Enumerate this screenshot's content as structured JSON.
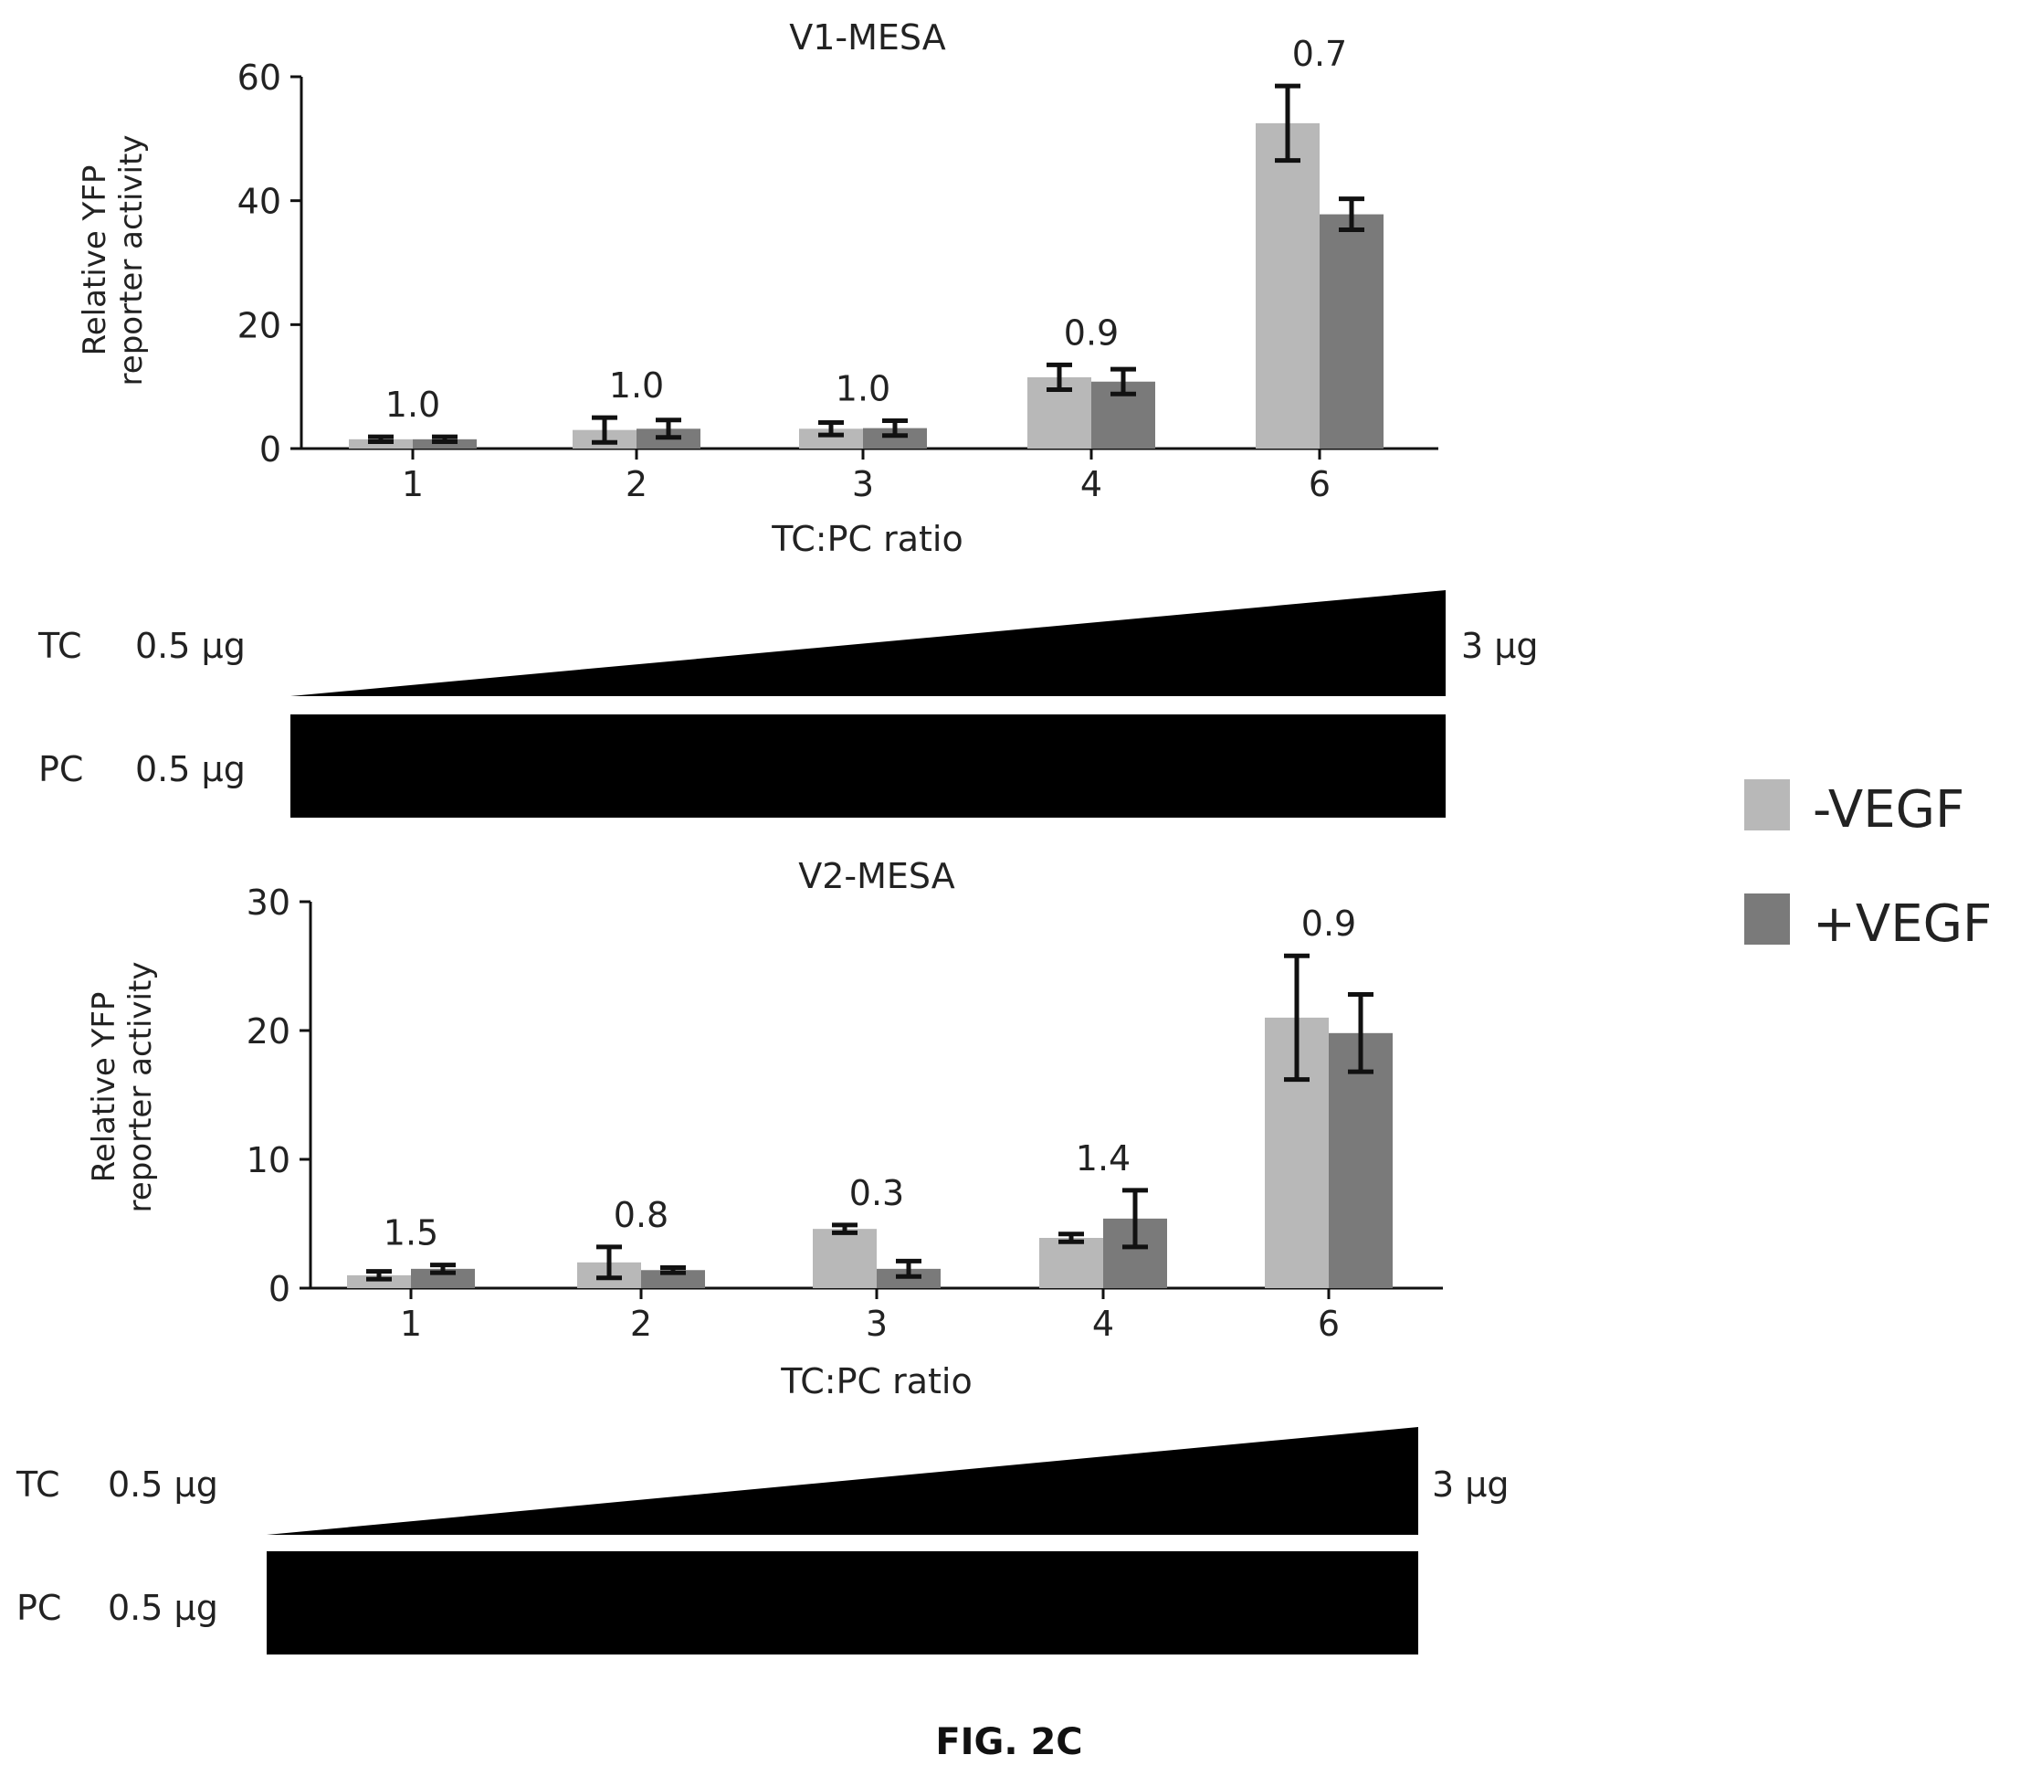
{
  "figure_label": "FIG. 2C",
  "colors": {
    "minus": "#b8b8b8",
    "plus": "#7a7a7a",
    "axis": "#111111",
    "error": "#111111",
    "text": "#222222"
  },
  "legend": {
    "items": [
      {
        "label": "-VEGF",
        "color": "#b8b8b8"
      },
      {
        "label": "+VEGF",
        "color": "#7a7a7a"
      }
    ]
  },
  "chart_data": [
    {
      "type": "bar",
      "title": "V1-MESA",
      "xlabel": "TC:PC ratio",
      "ylabel_lines": [
        "Relative YFP",
        "reporter activity"
      ],
      "ylim": [
        0,
        60
      ],
      "yticks": [
        0,
        20,
        40,
        60
      ],
      "categories": [
        "1",
        "2",
        "3",
        "4",
        "6"
      ],
      "series": [
        {
          "name": "-VEGF",
          "values": [
            1.5,
            3,
            3.2,
            11.5,
            52.5
          ],
          "errors": [
            0.4,
            2,
            1,
            2,
            6
          ]
        },
        {
          "name": "+VEGF",
          "values": [
            1.5,
            3.2,
            3.3,
            10.8,
            37.8
          ],
          "errors": [
            0.4,
            1.4,
            1.2,
            2,
            2.5
          ]
        }
      ],
      "annotations": [
        "1.0",
        "1.0",
        "1.0",
        "0.9",
        "0.7"
      ],
      "dose": {
        "tc_label": "TC",
        "tc_start": "0.5 μg",
        "tc_end": "3 μg",
        "pc_label": "PC",
        "pc_value": "0.5 μg"
      }
    },
    {
      "type": "bar",
      "title": "V2-MESA",
      "xlabel": "TC:PC ratio",
      "ylabel_lines": [
        "Relative YFP",
        "reporter activity"
      ],
      "ylim": [
        0,
        30
      ],
      "yticks": [
        0,
        10,
        20,
        30
      ],
      "categories": [
        "1",
        "2",
        "3",
        "4",
        "6"
      ],
      "series": [
        {
          "name": "-VEGF",
          "values": [
            1,
            2,
            4.6,
            3.9,
            21
          ],
          "errors": [
            0.3,
            1.2,
            0.3,
            0.3,
            4.8
          ]
        },
        {
          "name": "+VEGF",
          "values": [
            1.5,
            1.4,
            1.5,
            5.4,
            19.8
          ],
          "errors": [
            0.3,
            0.2,
            0.6,
            2.2,
            3
          ]
        }
      ],
      "annotations": [
        "1.5",
        "0.8",
        "0.3",
        "1.4",
        "0.9"
      ],
      "dose": {
        "tc_label": "TC",
        "tc_start": "0.5 μg",
        "tc_end": "3 μg",
        "pc_label": "PC",
        "pc_value": "0.5 μg"
      }
    }
  ]
}
